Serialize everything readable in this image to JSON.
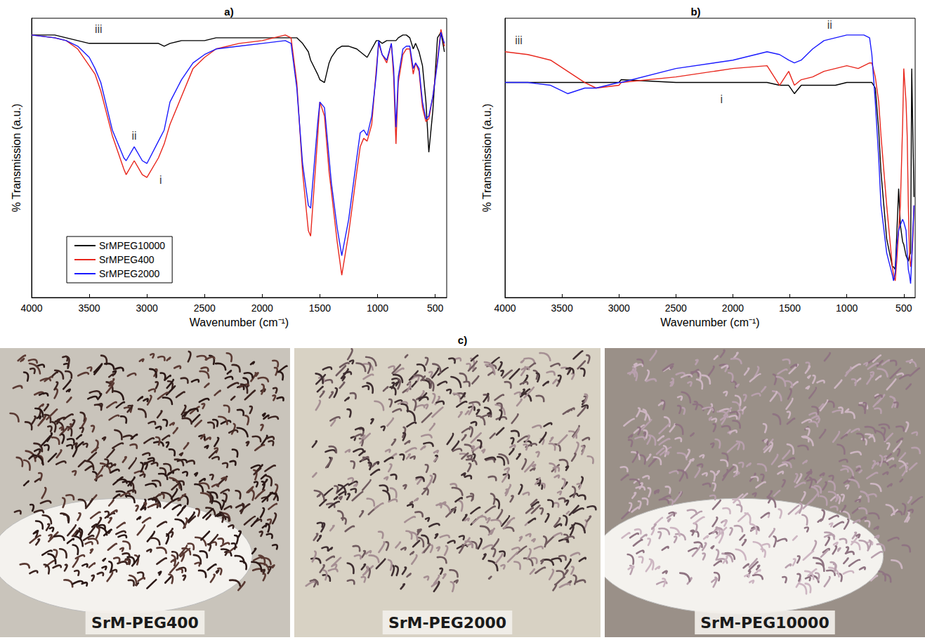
{
  "chart_data": [
    {
      "type": "line",
      "title": "a)",
      "x_label": "Wavenumber (cm⁻¹)",
      "y_label": "% Transmission (a.u.)",
      "x": [
        4000,
        3800,
        3700,
        3600,
        3500,
        3450,
        3400,
        3300,
        3200,
        3180,
        3110,
        3040,
        3000,
        2900,
        2850,
        2800,
        2700,
        2600,
        2500,
        2400,
        2200,
        2000,
        1800,
        1750,
        1700,
        1650,
        1600,
        1580,
        1520,
        1500,
        1460,
        1420,
        1400,
        1350,
        1310,
        1250,
        1180,
        1150,
        1120,
        1090,
        1050,
        1010,
        990,
        960,
        920,
        880,
        860,
        840,
        820,
        780,
        750,
        720,
        690,
        670,
        640,
        610,
        580,
        555,
        520,
        480,
        450,
        420
      ],
      "series": [
        {
          "name": "SrMPEG10000",
          "color": "#000000",
          "values": [
            94,
            94,
            93,
            92,
            91,
            91,
            91,
            91,
            91,
            91,
            91,
            91,
            91,
            91,
            90,
            91,
            92,
            92,
            92,
            93,
            93,
            93,
            93,
            93,
            93,
            91,
            88,
            85,
            80,
            78,
            77,
            84,
            86,
            89,
            90,
            90,
            89,
            88,
            87,
            86,
            89,
            92,
            92,
            91,
            92,
            92,
            92,
            92,
            93,
            94,
            94,
            93,
            89,
            91,
            88,
            83,
            70,
            52,
            67,
            93,
            95,
            88
          ]
        },
        {
          "name": "SrMPEG400",
          "color": "#e8261c",
          "values": [
            94,
            93,
            92,
            89,
            83,
            80,
            74,
            58,
            46,
            44,
            49,
            44,
            43,
            50,
            55,
            62,
            72,
            82,
            86,
            89,
            91,
            92,
            94,
            93,
            77,
            45,
            24,
            22,
            57,
            70,
            65,
            45,
            38,
            20,
            8,
            23,
            45,
            54,
            57,
            56,
            62,
            82,
            91,
            87,
            84,
            91,
            79,
            55,
            77,
            87,
            89,
            89,
            80,
            84,
            81,
            68,
            63,
            64,
            72,
            85,
            96,
            90
          ]
        },
        {
          "name": "SrMPEG2000",
          "color": "#1a1aff",
          "values": [
            94,
            93,
            92,
            90,
            86,
            82,
            77,
            60,
            50,
            49,
            54,
            49,
            48,
            56,
            60,
            70,
            78,
            84,
            87,
            89,
            90,
            91,
            92,
            91,
            75,
            48,
            33,
            32,
            62,
            70,
            68,
            50,
            41,
            25,
            15,
            28,
            50,
            59,
            60,
            58,
            65,
            80,
            92,
            87,
            85,
            91,
            82,
            61,
            79,
            89,
            90,
            90,
            82,
            84,
            82,
            70,
            64,
            65,
            72,
            84,
            95,
            91
          ]
        }
      ],
      "xlim": [
        4000,
        400
      ],
      "xticks": [
        4000,
        3500,
        3000,
        2500,
        2000,
        1500,
        1000,
        500
      ],
      "ylim": [
        0,
        100
      ],
      "tick_labels": "x",
      "grid": false,
      "legend": "lower left",
      "annotations": [
        {
          "text": "iii",
          "x": 3420,
          "y": 96
        },
        {
          "text": "ii",
          "x": 3110,
          "y": 58
        },
        {
          "text": "i",
          "x": 2880,
          "y": 42
        }
      ]
    },
    {
      "type": "line",
      "title": "b)",
      "x_label": "Wavenumber (cm⁻¹)",
      "y_label": "% Transmission (a.u.)",
      "x": [
        4000,
        3800,
        3600,
        3450,
        3300,
        3200,
        3000,
        2980,
        2500,
        2000,
        1700,
        1590,
        1510,
        1460,
        1400,
        1300,
        1200,
        1100,
        1000,
        900,
        850,
        800,
        780,
        750,
        720,
        700,
        650,
        600,
        590,
        575,
        560,
        545,
        530,
        510,
        500,
        480,
        470,
        460,
        450,
        440,
        430,
        420,
        410
      ],
      "series": [
        {
          "color": "#000000",
          "values": [
            77,
            77,
            77,
            77,
            77,
            77,
            77,
            78,
            77,
            77,
            77,
            76,
            76,
            73,
            76,
            76,
            76,
            76,
            77,
            77,
            77,
            77,
            77,
            75,
            60,
            45,
            21,
            11,
            11,
            10,
            24,
            39,
            26,
            20,
            19,
            15,
            14,
            13,
            15,
            16,
            82,
            58,
            36
          ]
        },
        {
          "color": "#e8261c",
          "values": [
            88,
            87,
            85,
            81,
            77,
            75,
            76,
            77,
            79,
            82,
            83,
            76,
            81,
            76,
            78,
            79,
            81,
            82,
            83,
            82,
            83,
            84,
            84,
            79,
            70,
            58,
            33,
            11,
            8,
            6,
            14,
            24,
            33,
            62,
            82,
            70,
            58,
            33,
            16,
            11,
            14,
            21,
            33
          ]
        },
        {
          "color": "#1a1aff",
          "values": [
            77,
            77,
            76,
            73,
            75,
            75,
            77,
            77,
            82,
            85,
            88,
            87,
            85,
            84,
            85,
            89,
            92,
            93,
            94,
            94,
            94,
            93,
            87,
            70,
            50,
            33,
            16,
            8,
            6,
            9,
            19,
            24,
            26,
            28,
            27,
            24,
            16,
            10,
            8,
            5,
            14,
            24,
            33
          ]
        }
      ],
      "xlim": [
        4000,
        400
      ],
      "xticks": [
        4000,
        3500,
        3000,
        2500,
        2000,
        1500,
        1000,
        500
      ],
      "ylim": [
        0,
        100
      ],
      "tick_labels": "x",
      "grid": false,
      "annotations": [
        {
          "text": "iii",
          "x": 3880,
          "y": 92
        },
        {
          "text": "ii",
          "x": 1150,
          "y": 97.5
        },
        {
          "text": "i",
          "x": 2100,
          "y": 71
        }
      ]
    }
  ],
  "photo_panel": {
    "label": "c)",
    "captions": [
      "SrM-PEG400",
      "SrM-PEG2000",
      "SrM-PEG10000"
    ]
  }
}
